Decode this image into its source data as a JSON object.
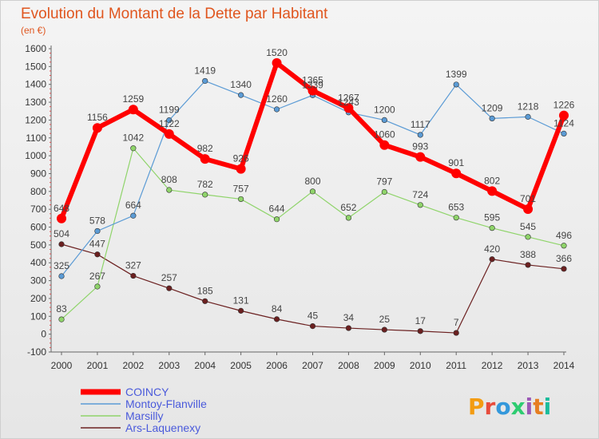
{
  "chart_data": {
    "type": "line",
    "title": "Evolution du Montant de la Dette par Habitant",
    "subtitle": "(en €)",
    "x": [
      "2000",
      "2001",
      "2002",
      "2003",
      "2004",
      "2005",
      "2006",
      "2007",
      "2008",
      "2009",
      "2010",
      "2011",
      "2012",
      "2013",
      "2014"
    ],
    "ylim": [
      -100,
      1600
    ],
    "yticks": [
      -100,
      0,
      100,
      200,
      300,
      400,
      500,
      600,
      700,
      800,
      900,
      1000,
      1100,
      1200,
      1300,
      1400,
      1500,
      1600
    ],
    "grid": false,
    "legend_position": "bottom-left",
    "series": [
      {
        "name": "COINCY",
        "color": "#ff0000",
        "values": [
          648,
          1156,
          1259,
          1122,
          982,
          926,
          1520,
          1365,
          1267,
          1060,
          993,
          901,
          802,
          701,
          1226
        ]
      },
      {
        "name": "Montoy-Flanville",
        "color": "#5b9bd5",
        "values": [
          325,
          578,
          664,
          1199,
          1419,
          1340,
          1260,
          1339,
          1243,
          1200,
          1117,
          1399,
          1209,
          1218,
          1124
        ]
      },
      {
        "name": "Marsilly",
        "color": "#8fd46a",
        "values": [
          83,
          267,
          1042,
          808,
          782,
          757,
          644,
          800,
          652,
          797,
          724,
          653,
          595,
          545,
          496
        ]
      },
      {
        "name": "Ars-Laquenexy",
        "color": "#6b2020",
        "values": [
          504,
          447,
          327,
          257,
          185,
          131,
          84,
          45,
          34,
          25,
          17,
          7,
          420,
          388,
          366
        ]
      }
    ]
  },
  "brand": {
    "text": "Proxiti",
    "colors": [
      "#f39c12",
      "#e74c3c",
      "#3498db",
      "#2ecc71",
      "#9b59b6",
      "#e67e22",
      "#1abc9c"
    ]
  }
}
